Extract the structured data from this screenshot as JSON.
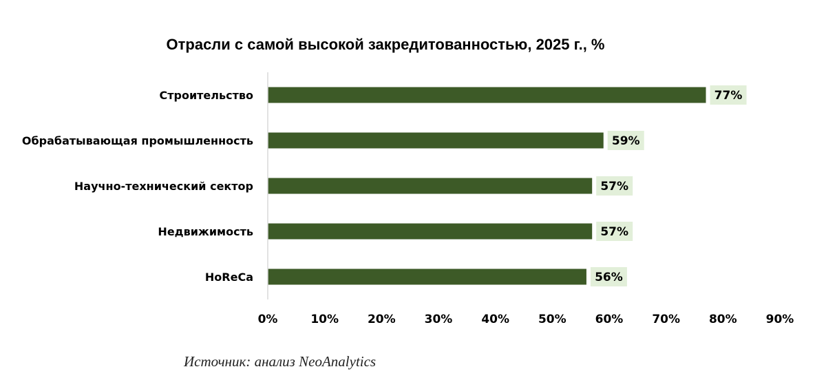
{
  "chart_data": {
    "type": "bar",
    "orientation": "horizontal",
    "title": "Отрасли с самой высокой закредитованностью, 2025 г., %",
    "categories": [
      "Строительство",
      "Обрабатывающая промышленность",
      "Научно-технический сектор",
      "Недвижимость",
      "HoReCa"
    ],
    "values": [
      77,
      59,
      57,
      57,
      56
    ],
    "data_labels": [
      "77%",
      "59%",
      "57%",
      "57%",
      "56%"
    ],
    "xlim": [
      0,
      90
    ],
    "x_ticks": [
      "0%",
      "10%",
      "20%",
      "30%",
      "40%",
      "50%",
      "60%",
      "70%",
      "80%",
      "90%"
    ],
    "xlabel": "",
    "ylabel": "",
    "grid": false,
    "legend": false,
    "bar_color": "#3d5a27",
    "label_background": "#e2efd9"
  },
  "source": "Источник: анализ NeoAnalytics"
}
